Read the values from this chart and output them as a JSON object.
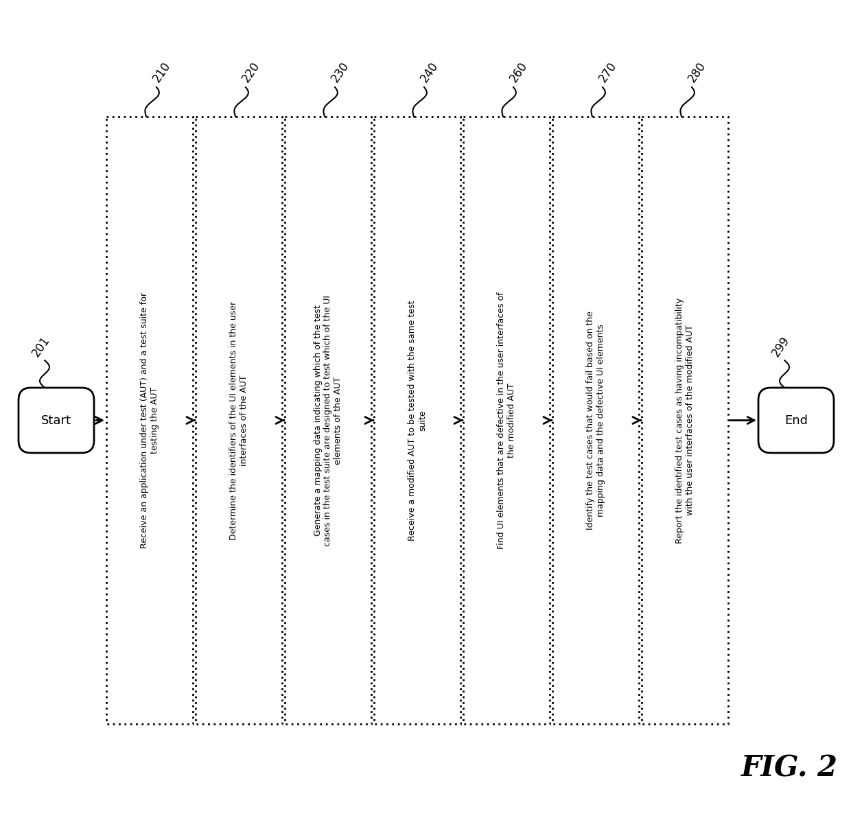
{
  "title": "FIG. 2",
  "background_color": "#ffffff",
  "start_label": "Start",
  "end_label": "End",
  "start_id": "201",
  "end_id": "299",
  "steps": [
    {
      "id": "210",
      "text": "Receive an application under test (AUT) and a test suite for\ntesting the AUT"
    },
    {
      "id": "220",
      "text": "Determine the identifiers of the UI elements in the user\ninterfaces of the AUT"
    },
    {
      "id": "230",
      "text": "Generate a mapping data indicating which of the test\ncases in the test suite are designed to test which of the UI\nelements of the AUT"
    },
    {
      "id": "240",
      "text": "Receive a modified AUT to be tested with the same test\nsuite"
    },
    {
      "id": "260",
      "text": "Find UI elements that are defective in the user interfaces of\nthe modified AUT"
    },
    {
      "id": "270",
      "text": "Identify the test cases that would fail based on the\nmapping data and the defective UI elements"
    },
    {
      "id": "280",
      "text": "Report the identified test cases as having incompatibility\nwith the user interfaces of the modified AUT"
    }
  ],
  "label_rotation": 55,
  "arrow_color": "#000000",
  "box_edge_color": "#000000",
  "box_face_color": "#ffffff",
  "text_color": "#000000",
  "font_size": 9.0,
  "label_fontsize": 12.0,
  "title_fontsize": 30
}
